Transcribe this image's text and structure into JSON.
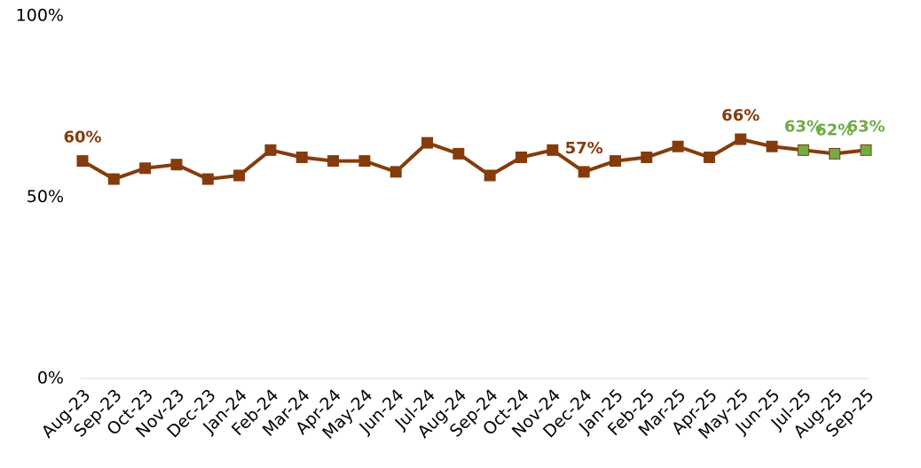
{
  "chart_data": {
    "type": "line",
    "categories": [
      "Aug-23",
      "Sep-23",
      "Oct-23",
      "Nov-23",
      "Dec-23",
      "Jan-24",
      "Feb-24",
      "Mar-24",
      "Apr-24",
      "May-24",
      "Jun-24",
      "Jul-24",
      "Aug-24",
      "Sep-24",
      "Oct-24",
      "Nov-24",
      "Dec-24",
      "Jan-25",
      "Feb-25",
      "Mar-25",
      "Apr-25",
      "May-25",
      "Jun-25",
      "Jul-25",
      "Aug-25",
      "Sep-25"
    ],
    "series": [
      {
        "color": "#843c0c",
        "values": [
          60,
          55,
          58,
          59,
          55,
          56,
          63,
          61,
          60,
          60,
          57,
          65,
          62,
          56,
          61,
          63,
          57,
          60,
          61,
          64,
          61,
          66,
          64,
          63,
          62,
          63
        ],
        "value_labels": [
          "60%",
          null,
          null,
          null,
          null,
          null,
          null,
          null,
          null,
          null,
          null,
          null,
          null,
          null,
          null,
          null,
          "57%",
          null,
          null,
          null,
          null,
          "66%",
          null,
          "63%",
          "62%",
          "63%"
        ],
        "marker_colors": [
          "#843c0c",
          "#843c0c",
          "#843c0c",
          "#843c0c",
          "#843c0c",
          "#843c0c",
          "#843c0c",
          "#843c0c",
          "#843c0c",
          "#843c0c",
          "#843c0c",
          "#843c0c",
          "#843c0c",
          "#843c0c",
          "#843c0c",
          "#843c0c",
          "#843c0c",
          "#843c0c",
          "#843c0c",
          "#843c0c",
          "#843c0c",
          "#843c0c",
          "#843c0c",
          "#70ad47",
          "#70ad47",
          "#70ad47"
        ]
      }
    ],
    "ylim": [
      0,
      100
    ],
    "yticks": [
      {
        "value": 0,
        "label": "0%"
      },
      {
        "value": 50,
        "label": "50%"
      },
      {
        "value": 100,
        "label": "100%"
      }
    ],
    "grid": false
  }
}
